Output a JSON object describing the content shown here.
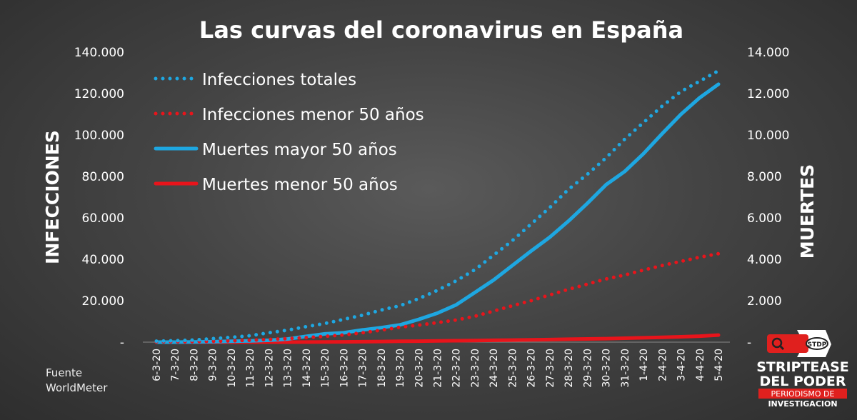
{
  "chart_data": {
    "type": "line",
    "title": "Las curvas del coronavirus en España",
    "ylabel_left": "INFECCIONES",
    "ylabel_right": "MUERTES",
    "ylim_left": [
      0,
      140000
    ],
    "ylim_right": [
      0,
      14000
    ],
    "yticks_left": [
      "-",
      "20.000",
      "40.000",
      "60.000",
      "80.000",
      "100.000",
      "120.000",
      "140.000"
    ],
    "yticks_right": [
      "-",
      "2.000",
      "4.000",
      "6.000",
      "8.000",
      "10.000",
      "12.000",
      "14.000"
    ],
    "categories": [
      "6-3-20",
      "7-3-20",
      "8-3-20",
      "9-3-20",
      "10-3-20",
      "11-3-20",
      "12-3-20",
      "13-3-20",
      "14-3-20",
      "15-3-20",
      "16-3-20",
      "17-3-20",
      "18-3-20",
      "19-3-20",
      "20-3-20",
      "21-3-20",
      "22-3-20",
      "23-3-20",
      "24-3-20",
      "25-3-20",
      "26-3-20",
      "27-3-20",
      "28-3-20",
      "29-3-20",
      "30-3-20",
      "31-3-20",
      "1-4-20",
      "2-4-20",
      "3-4-20",
      "4-4-20",
      "5-4-20"
    ],
    "grid": false,
    "legend_position": "top-left",
    "series": [
      {
        "name": "Infecciones totales",
        "axis": "left",
        "style": "dotted",
        "color": "#1ea7e1",
        "values": [
          500,
          700,
          1000,
          1700,
          2300,
          3100,
          4500,
          5800,
          7500,
          9000,
          11000,
          13000,
          15500,
          17600,
          21000,
          25000,
          29600,
          35000,
          42000,
          49000,
          57000,
          65000,
          73800,
          81000,
          89000,
          98000,
          106000,
          114000,
          121000,
          126000,
          131000
        ]
      },
      {
        "name": "Infecciones menor 50 años",
        "axis": "left",
        "style": "dotted",
        "color": "#e8141b",
        "values": [
          100,
          150,
          250,
          400,
          600,
          900,
          1300,
          1700,
          2200,
          2800,
          3500,
          4500,
          5800,
          7200,
          8200,
          9400,
          10700,
          12500,
          15000,
          17600,
          20000,
          22800,
          25500,
          28000,
          30500,
          32400,
          34800,
          37000,
          39000,
          41000,
          42700
        ]
      },
      {
        "name": "Muertes mayor 50 años",
        "axis": "right",
        "style": "solid",
        "color": "#1ea7e1",
        "values": [
          0,
          0,
          10,
          20,
          40,
          60,
          90,
          150,
          280,
          400,
          450,
          590,
          700,
          830,
          1100,
          1400,
          1800,
          2400,
          3000,
          3700,
          4400,
          5070,
          5850,
          6700,
          7600,
          8240,
          9100,
          10070,
          11000,
          11800,
          12450
        ]
      },
      {
        "name": "Muertes menor 50 años",
        "axis": "right",
        "style": "solid",
        "color": "#e8141b",
        "values": [
          0,
          0,
          0,
          0,
          0,
          0,
          0,
          0,
          5,
          10,
          15,
          20,
          30,
          40,
          50,
          60,
          70,
          80,
          90,
          100,
          110,
          125,
          140,
          155,
          170,
          190,
          210,
          235,
          260,
          290,
          340
        ]
      }
    ]
  },
  "source": {
    "line1": "Fuente",
    "line2": "WorldMeter"
  },
  "logo": {
    "badge": "STDP",
    "line1": "STRIPTEASE",
    "line2": "DEL PODER",
    "line3": "PERIODISMO DE",
    "line4": "INVESTIGACION"
  }
}
